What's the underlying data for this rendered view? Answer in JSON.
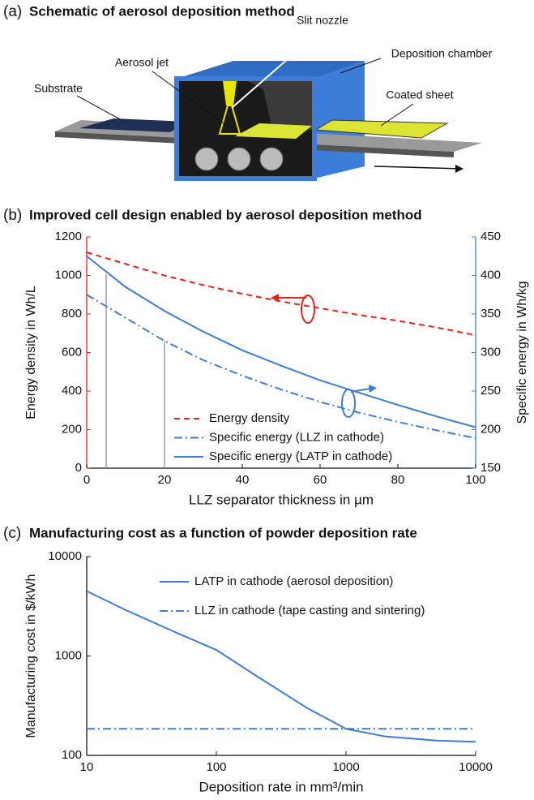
{
  "schematic": {
    "panel_label": "(a)",
    "title": "Schematic of aerosol deposition method",
    "labels": {
      "slit_nozzle": "Slit nozzle",
      "deposition_chamber": "Deposition chamber",
      "aerosol_jet": "Aerosol jet",
      "substrate": "Substrate",
      "coated_sheet": "Coated sheet"
    }
  },
  "chart_data": [
    {
      "type": "line",
      "panel_label": "(b)",
      "title": "Improved cell design enabled by aerosol deposition method",
      "x_label": "LLZ separator thickness in µm",
      "y_label": "Energy density in Wh/L",
      "y2_label": "Specific energy in Wh/kg",
      "x": [
        0,
        10,
        20,
        30,
        40,
        50,
        60,
        70,
        80,
        90,
        100
      ],
      "xlim": [
        0,
        100
      ],
      "xticks": [
        0,
        20,
        40,
        60,
        80,
        100
      ],
      "ylim": [
        0,
        1200
      ],
      "yticks": [
        0,
        200,
        400,
        600,
        800,
        1000,
        1200
      ],
      "y2lim": [
        150,
        450
      ],
      "y2ticks": [
        150,
        200,
        250,
        300,
        350,
        400,
        450
      ],
      "axis_colors": {
        "y": "#e8211a",
        "y2": "#3b7dd8"
      },
      "legend": "lower center",
      "series": [
        {
          "name": "Energy density",
          "color": "#e8211a",
          "dash": "dashed",
          "values": [
            1120,
            1060,
            1000,
            950,
            905,
            865,
            830,
            795,
            765,
            730,
            690
          ]
        },
        {
          "name": "Specific energy (LLZ in cathode)",
          "color": "#3b7dd8",
          "dash": "dashdot",
          "axis": "y2",
          "values": [
            375,
            345,
            315,
            290,
            270,
            252,
            236,
            222,
            210,
            199,
            189
          ]
        },
        {
          "name": "Specific energy (LATP in cathode)",
          "color": "#3b7dd8",
          "dash": "solid",
          "axis": "y2",
          "values": [
            425,
            385,
            354,
            327,
            303,
            283,
            264,
            248,
            232,
            217,
            203
          ]
        }
      ],
      "vlines": [
        {
          "x": 5,
          "y2": 402
        },
        {
          "x": 20,
          "y2": 315
        }
      ]
    },
    {
      "type": "line",
      "panel_label": "(c)",
      "title": "Manufacturing cost as a function of powder deposition rate",
      "x_label": "Deposition rate in mm³/min",
      "y_label": "Manufacturing cost in $/kWh",
      "xscale": "log",
      "yscale": "log",
      "xlim": [
        10,
        10000
      ],
      "xticks": [
        10,
        100,
        1000,
        10000
      ],
      "ylim": [
        100,
        10000
      ],
      "yticks": [
        100,
        1000,
        10000
      ],
      "legend": "upper right",
      "series": [
        {
          "name": "LATP in cathode (aerosol deposition)",
          "color": "#3b7dd8",
          "dash": "solid",
          "x": [
            10,
            20,
            50,
            100,
            200,
            500,
            1000,
            2000,
            5000,
            10000
          ],
          "values": [
            4500,
            2900,
            1700,
            1150,
            640,
            300,
            185,
            155,
            141,
            137
          ]
        },
        {
          "name": "LLZ in cathode (tape casting and sintering)",
          "color": "#3b7dd8",
          "dash": "dashdot",
          "x": [
            10,
            10000
          ],
          "values": [
            185,
            185
          ]
        }
      ]
    }
  ]
}
